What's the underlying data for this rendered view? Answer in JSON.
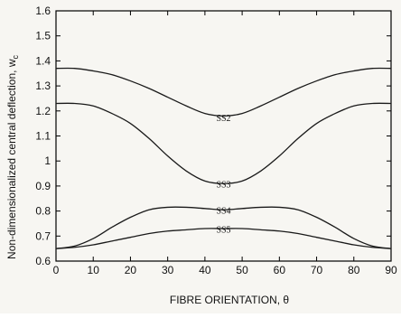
{
  "chart_data": {
    "type": "line",
    "title": "",
    "xlabel": "FIBRE ORIENTATION,  θ",
    "ylabel": "Non-dimensionalized central deflection, w",
    "ylabel_subscript": "c",
    "xlim": [
      0,
      90
    ],
    "ylim": [
      0.6,
      1.6
    ],
    "xticks": [
      "0",
      "10",
      "20",
      "30",
      "40",
      "50",
      "60",
      "70",
      "80",
      "90"
    ],
    "yticks": [
      "0.6",
      "0.7",
      "0.8",
      "0.9",
      "1",
      "1.1",
      "1.2",
      "1.3",
      "1.4",
      "1.5",
      "1.6"
    ],
    "grid": false,
    "x": [
      0,
      5,
      10,
      15,
      20,
      25,
      30,
      35,
      40,
      45,
      50,
      55,
      60,
      65,
      70,
      75,
      80,
      85,
      90
    ],
    "series": [
      {
        "name": "SS2",
        "values": [
          1.37,
          1.37,
          1.36,
          1.345,
          1.32,
          1.29,
          1.255,
          1.22,
          1.19,
          1.18,
          1.19,
          1.22,
          1.255,
          1.29,
          1.32,
          1.345,
          1.36,
          1.37,
          1.37
        ]
      },
      {
        "name": "SS3",
        "values": [
          1.23,
          1.23,
          1.22,
          1.19,
          1.15,
          1.09,
          1.02,
          0.96,
          0.92,
          0.91,
          0.92,
          0.96,
          1.02,
          1.09,
          1.15,
          1.19,
          1.22,
          1.23,
          1.23
        ]
      },
      {
        "name": "SS4",
        "values": [
          0.65,
          0.66,
          0.69,
          0.735,
          0.775,
          0.805,
          0.815,
          0.815,
          0.81,
          0.805,
          0.81,
          0.815,
          0.815,
          0.805,
          0.775,
          0.735,
          0.69,
          0.66,
          0.65
        ]
      },
      {
        "name": "SS5",
        "values": [
          0.65,
          0.655,
          0.665,
          0.68,
          0.695,
          0.71,
          0.72,
          0.725,
          0.73,
          0.73,
          0.73,
          0.725,
          0.72,
          0.71,
          0.695,
          0.68,
          0.665,
          0.655,
          0.65
        ]
      }
    ],
    "labels": [
      {
        "text": "SS2",
        "x": 45,
        "y": 1.16
      },
      {
        "text": "SS3",
        "x": 45,
        "y": 0.895
      },
      {
        "text": "SS4",
        "x": 45,
        "y": 0.79
      },
      {
        "text": "SS5",
        "x": 45,
        "y": 0.714
      }
    ],
    "line_color": "#1a1a1a",
    "axis_color": "#000000"
  }
}
